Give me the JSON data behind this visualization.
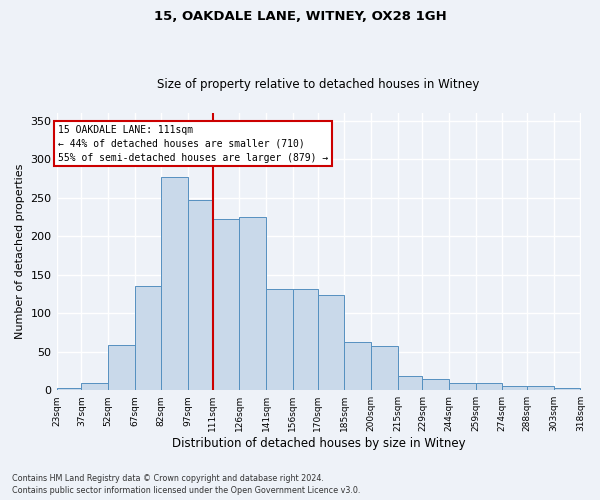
{
  "title1": "15, OAKDALE LANE, WITNEY, OX28 1GH",
  "title2": "Size of property relative to detached houses in Witney",
  "xlabel": "Distribution of detached houses by size in Witney",
  "ylabel": "Number of detached properties",
  "footnote1": "Contains HM Land Registry data © Crown copyright and database right 2024.",
  "footnote2": "Contains public sector information licensed under the Open Government Licence v3.0.",
  "annotation_line1": "15 OAKDALE LANE: 111sqm",
  "annotation_line2": "← 44% of detached houses are smaller (710)",
  "annotation_line3": "55% of semi-detached houses are larger (879) →",
  "property_size": 111,
  "bin_edges": [
    23,
    37,
    52,
    67,
    82,
    97,
    111,
    126,
    141,
    156,
    170,
    185,
    200,
    215,
    229,
    244,
    259,
    274,
    288,
    303,
    318
  ],
  "bar_heights": [
    3,
    10,
    59,
    135,
    277,
    247,
    222,
    225,
    131,
    131,
    124,
    62,
    58,
    18,
    15,
    9,
    9,
    5,
    6,
    3
  ],
  "bar_color": "#c9d9ea",
  "bar_edge_color": "#5590c0",
  "vline_color": "#cc0000",
  "background_color": "#eef2f8",
  "grid_color": "#ffffff",
  "annotation_box_color": "#ffffff",
  "annotation_box_edge": "#cc0000",
  "ylim": [
    0,
    360
  ],
  "yticks": [
    0,
    50,
    100,
    150,
    200,
    250,
    300,
    350
  ]
}
